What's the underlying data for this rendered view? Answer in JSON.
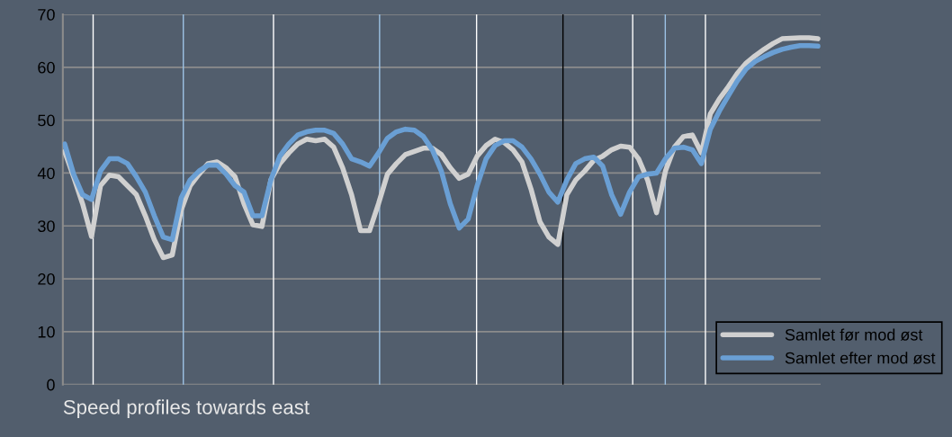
{
  "chart_data": {
    "type": "line",
    "xlabel": "Speed profiles towards east",
    "categories": [
      null,
      null,
      null,
      null,
      null,
      null,
      null,
      null,
      null,
      null,
      null,
      null,
      null,
      null,
      null,
      null,
      null,
      null,
      null,
      null,
      null,
      null,
      null,
      null,
      null,
      null,
      null,
      null,
      null,
      null,
      null,
      null,
      null,
      null,
      null,
      null,
      null,
      null,
      null,
      null,
      null,
      null,
      null,
      null,
      null,
      null,
      null,
      null,
      null,
      null,
      null,
      null,
      null,
      null,
      null,
      null,
      null,
      null,
      null,
      null,
      null,
      null,
      null,
      null,
      null,
      null,
      null,
      null,
      null,
      null,
      null,
      null,
      null,
      null,
      null,
      null,
      null,
      null,
      null,
      null,
      null,
      null,
      null,
      null,
      null
    ],
    "series": [
      {
        "name": "Samlet før mod øst",
        "color": "#d0d0d0",
        "values": [
          44.1,
          39.3,
          34.2,
          28.0,
          37.6,
          39.6,
          39.3,
          37.6,
          35.9,
          31.9,
          27.4,
          24.0,
          24.5,
          33.0,
          37.6,
          39.8,
          41.8,
          42.1,
          41.0,
          39.3,
          34.2,
          30.2,
          29.9,
          38.7,
          41.8,
          43.8,
          45.5,
          46.4,
          46.1,
          46.4,
          44.9,
          41.0,
          35.9,
          29.1,
          29.1,
          34.2,
          39.8,
          41.8,
          43.5,
          44.1,
          44.7,
          44.7,
          43.5,
          41.0,
          39.0,
          39.8,
          43.2,
          45.2,
          46.4,
          45.8,
          44.4,
          42.1,
          37.0,
          30.8,
          27.9,
          26.5,
          35.9,
          38.7,
          40.4,
          42.4,
          43.2,
          44.4,
          45.1,
          44.9,
          42.7,
          38.7,
          32.5,
          40.4,
          44.9,
          46.9,
          47.2,
          43.8,
          51.2,
          54.0,
          56.3,
          58.8,
          60.8,
          62.2,
          63.4,
          64.5,
          65.4,
          65.5,
          65.6,
          65.6,
          65.4
        ]
      },
      {
        "name": "Samlet efter mod øst",
        "color": "#6a9fd4",
        "values": [
          45.5,
          39.8,
          35.9,
          35.0,
          40.4,
          42.7,
          42.7,
          41.8,
          39.3,
          36.4,
          31.9,
          27.9,
          27.4,
          35.3,
          38.7,
          40.4,
          41.5,
          41.5,
          39.8,
          37.6,
          36.4,
          31.9,
          31.9,
          38.7,
          43.2,
          45.5,
          47.2,
          47.8,
          48.1,
          48.1,
          47.5,
          45.5,
          42.7,
          42.1,
          41.3,
          43.8,
          46.6,
          47.8,
          48.3,
          48.1,
          46.9,
          44.4,
          40.4,
          34.2,
          29.6,
          31.3,
          37.6,
          42.7,
          45.2,
          46.1,
          46.1,
          44.9,
          42.7,
          39.8,
          36.4,
          34.5,
          38.7,
          41.8,
          42.7,
          43.0,
          41.3,
          35.9,
          32.2,
          36.4,
          39.3,
          39.8,
          40.0,
          42.7,
          44.7,
          44.9,
          44.4,
          41.8,
          48.3,
          51.7,
          54.6,
          57.4,
          59.7,
          61.1,
          62.0,
          62.8,
          63.4,
          63.8,
          64.1,
          64.1,
          64.0
        ]
      }
    ],
    "ylim": [
      0,
      70
    ],
    "yticks": [
      0,
      10,
      20,
      30,
      40,
      50,
      60,
      70
    ],
    "grid": true,
    "legend": "bottom right",
    "line_style": "solid",
    "marker": "none"
  }
}
